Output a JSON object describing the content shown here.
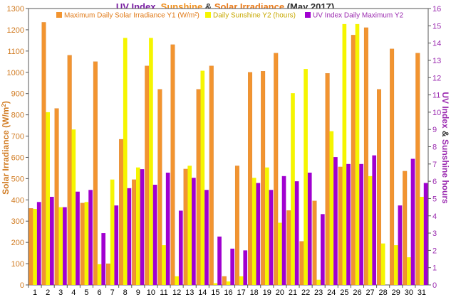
{
  "title": {
    "part1": "UV Index",
    "sep1": ", ",
    "part2": "Sunshine",
    "sep2": " & ",
    "part3": "Solar Irradiance",
    "part4": " (May 2017)"
  },
  "colors": {
    "uv": "#7a1fa2",
    "sunshine": "#f0901e",
    "solar": "#e87a1a",
    "bar_solar": "#f29430",
    "bar_sunshine": "#f5f500",
    "bar_uv": "#a000d0",
    "y2_label": "#9b2bb0",
    "axis": "#555555",
    "y1_ticks": "#d07a20",
    "y2_ticks": "#9b2bb0"
  },
  "chart_data": {
    "type": "bar",
    "categories": [
      "1",
      "2",
      "3",
      "4",
      "5",
      "6",
      "7",
      "8",
      "9",
      "10",
      "11",
      "12",
      "13",
      "14",
      "15",
      "16",
      "17",
      "18",
      "19",
      "20",
      "21",
      "22",
      "23",
      "24",
      "25",
      "26",
      "27",
      "28",
      "29",
      "30",
      "31"
    ],
    "y1_label_parts": [
      "Solar Irradiance",
      " (W/m",
      "2",
      ")"
    ],
    "y2_label_parts": [
      "UV Index",
      " & ",
      "Sunshine hours"
    ],
    "y1_range": [
      0,
      1300
    ],
    "y1_ticks": [
      "0",
      "100",
      "200",
      "300",
      "400",
      "500",
      "600",
      "700",
      "800",
      "900",
      "1000",
      "1100",
      "1200",
      "1300"
    ],
    "y2_range": [
      0,
      16
    ],
    "y2_ticks": [
      "0",
      "1",
      "2",
      "3",
      "4",
      "5",
      "6",
      "7",
      "8",
      "9",
      "10",
      "11",
      "12",
      "13",
      "14",
      "15",
      "16"
    ],
    "series": [
      {
        "name": "Maximum Daily Solar Irradiance Y1 (W/m²)",
        "axis": "y1",
        "values": [
          360,
          1235,
          830,
          1080,
          385,
          1050,
          100,
          685,
          495,
          1030,
          920,
          1130,
          545,
          920,
          1030,
          40,
          560,
          1000,
          1005,
          1090,
          350,
          205,
          395,
          995,
          555,
          1175,
          1210,
          920,
          1110,
          535,
          1090
        ]
      },
      {
        "name": "Daily Sunshine Y2 (hours)",
        "axis": "y2",
        "values": [
          4.4,
          10.0,
          4.5,
          9.0,
          4.8,
          1.2,
          6.1,
          14.3,
          6.8,
          14.3,
          2.3,
          0.5,
          6.9,
          12.4,
          0.1,
          0.2,
          0.5,
          6.2,
          6.8,
          3.6,
          11.1,
          12.5,
          0.3,
          8.9,
          15.1,
          15.1,
          6.3,
          2.4,
          2.3,
          1.6,
          5.1
        ]
      },
      {
        "name": "UV Index Daily Maximum Y2",
        "axis": "y2",
        "values": [
          4.8,
          5.1,
          4.5,
          5.4,
          5.5,
          3.0,
          4.6,
          5.6,
          6.7,
          5.8,
          6.5,
          4.3,
          6.2,
          5.5,
          2.8,
          2.1,
          2.0,
          5.9,
          5.5,
          6.3,
          6.0,
          6.5,
          4.1,
          7.4,
          7.0,
          7.0,
          7.5,
          0.0,
          4.6,
          7.3,
          5.9
        ]
      }
    ],
    "grid": false,
    "legend": "top"
  }
}
